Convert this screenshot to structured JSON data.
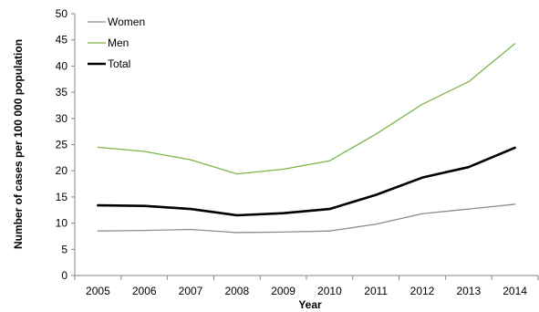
{
  "chart_data": {
    "type": "line",
    "title": "",
    "xlabel": "Year",
    "ylabel": "Number of cases per 100 000 population",
    "x": [
      "2005",
      "2006",
      "2007",
      "2008",
      "2009",
      "2010",
      "2011",
      "2012",
      "2013",
      "2014"
    ],
    "ylim": [
      0,
      50
    ],
    "yticks": [
      0,
      5,
      10,
      15,
      20,
      25,
      30,
      35,
      40,
      45,
      50
    ],
    "grid": false,
    "legend_position": "top-left",
    "series": [
      {
        "name": "Women",
        "color": "#8c8c8c",
        "values": [
          8.5,
          8.6,
          8.8,
          8.2,
          8.3,
          8.5,
          9.8,
          11.8,
          12.7,
          13.6
        ]
      },
      {
        "name": "Men",
        "color": "#7ab648",
        "values": [
          24.5,
          23.7,
          22.1,
          19.4,
          20.3,
          21.9,
          27.0,
          32.7,
          37.0,
          44.3
        ]
      },
      {
        "name": "Total",
        "color": "#000000",
        "values": [
          13.4,
          13.3,
          12.7,
          11.5,
          11.9,
          12.7,
          15.4,
          18.7,
          20.7,
          24.4
        ]
      }
    ]
  }
}
